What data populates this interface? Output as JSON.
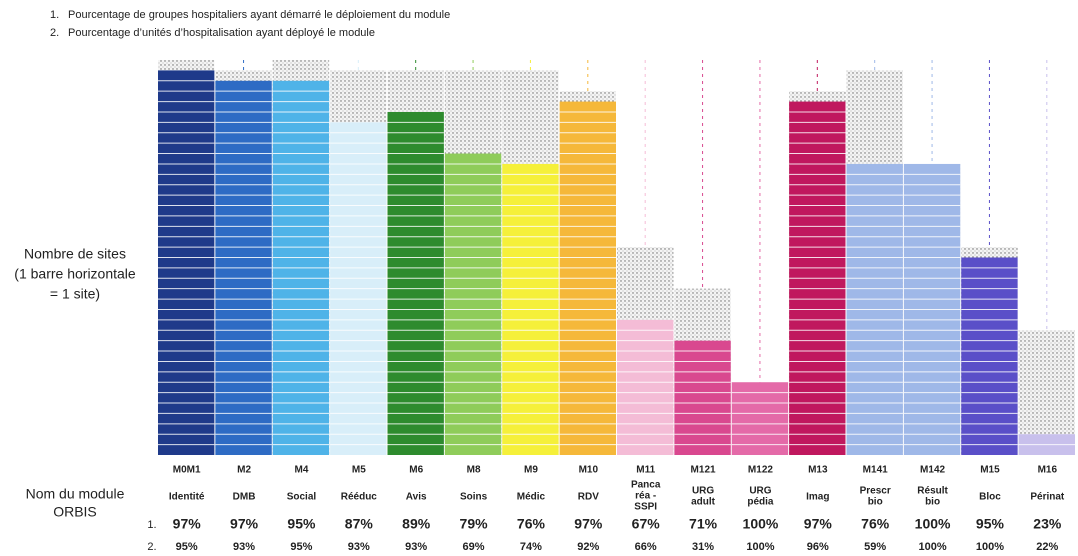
{
  "chart_data": {
    "type": "bar",
    "footnotes": [
      {
        "marker": "1.",
        "text": "Pourcentage de groupes hospitaliers ayant démarré le déploiement du module"
      },
      {
        "marker": "2.",
        "text": "Pourcentage d’unités d’hospitalisation ayant déployé le module"
      }
    ],
    "y_label": [
      "Nombre de sites",
      "(1 barre horizontale",
      "= 1 site)"
    ],
    "x_label": [
      "Nom du module",
      "ORBIS"
    ],
    "categories": [
      "M0M1",
      "M2",
      "M4",
      "M5",
      "M6",
      "M8",
      "M9",
      "M10",
      "M11",
      "M121",
      "M122",
      "M13",
      "M141",
      "M142",
      "M15",
      "M16"
    ],
    "names": [
      [
        "Identité"
      ],
      [
        "DMB"
      ],
      [
        "Social"
      ],
      [
        "Rééduc"
      ],
      [
        "Avis"
      ],
      [
        "Soins"
      ],
      [
        "Médic"
      ],
      [
        "RDV"
      ],
      [
        "Panca",
        "réa -",
        "SSPI"
      ],
      [
        "URG",
        "adult"
      ],
      [
        "URG",
        "pédia"
      ],
      [
        "Imag"
      ],
      [
        "Prescr",
        "bio"
      ],
      [
        "Résult",
        "bio"
      ],
      [
        "Bloc"
      ],
      [
        "Périnat"
      ]
    ],
    "colors": [
      "#1f3a8a",
      "#2e6bc4",
      "#4fb3e8",
      "#d8eef9",
      "#2e8b2e",
      "#8fcc5a",
      "#f5f03a",
      "#f5b83a",
      "#f4bcd6",
      "#d9488f",
      "#e46aa8",
      "#c0185e",
      "#9fb8e8",
      "#9fb8e8",
      "#5a4fc8",
      "#c8c0ec"
    ],
    "deployed": [
      37,
      36,
      36,
      32,
      33,
      29,
      28,
      34,
      13,
      11,
      7,
      34,
      28,
      28,
      19,
      2
    ],
    "total": [
      38,
      37,
      38,
      37,
      37,
      37,
      37,
      35,
      20,
      16,
      7,
      35,
      37,
      28,
      20,
      12
    ],
    "rows": [
      {
        "marker": "1.",
        "cells": [
          "97%",
          "97%",
          "95%",
          "87%",
          "89%",
          "79%",
          "76%",
          "97%",
          "67%",
          "71%",
          "100%",
          "97%",
          "76%",
          "100%",
          "95%",
          "23%"
        ]
      },
      {
        "marker": "2.",
        "cells": [
          "95%",
          "93%",
          "95%",
          "93%",
          "93%",
          "69%",
          "74%",
          "92%",
          "66%",
          "31%",
          "100%",
          "96%",
          "59%",
          "100%",
          "100%",
          "22%"
        ]
      }
    ]
  }
}
